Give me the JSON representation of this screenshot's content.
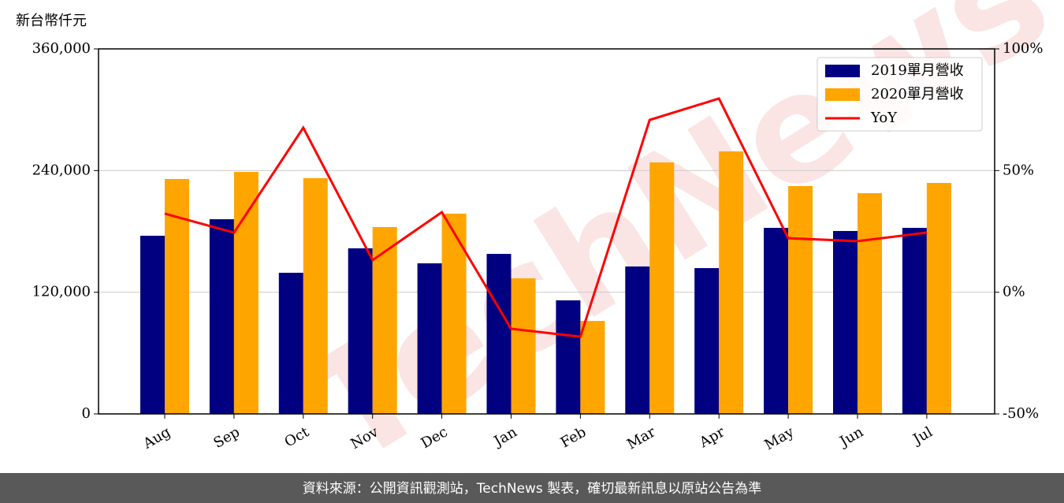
{
  "chart_data": {
    "type": "bar",
    "unit_label": "新台幣仟元",
    "watermark": "TechNews",
    "footer": "資料來源：公開資訊觀測站，TechNews 製表，確切最新訊息以原站公告為準",
    "categories": [
      "Aug",
      "Sep",
      "Oct",
      "Nov",
      "Dec",
      "Jan",
      "Feb",
      "Mar",
      "Apr",
      "May",
      "Jun",
      "Jul"
    ],
    "series": [
      {
        "name": "2019單月營收",
        "color": "#000080",
        "values": [
          175700,
          192000,
          139200,
          163300,
          148500,
          157800,
          112000,
          145400,
          143800,
          183500,
          180400,
          183500
        ]
      },
      {
        "name": "2020單月營收",
        "color": "#ffa500",
        "values": [
          231700,
          238700,
          232500,
          184300,
          197500,
          133700,
          91700,
          248000,
          258900,
          224700,
          217700,
          227800
        ]
      },
      {
        "name": "YoY",
        "color": "#ff0000",
        "type": "line",
        "axis": "y2",
        "values": [
          32.3,
          24.5,
          67.6,
          13.2,
          32.9,
          -15,
          -18.3,
          70.8,
          79.6,
          22.2,
          21,
          24.5
        ]
      }
    ],
    "ylim": [
      0,
      360000
    ],
    "yticks": [
      0,
      {
        "value": 120000,
        "label": "120,000"
      },
      {
        "value": 240000,
        "label": "240,000"
      },
      {
        "value": 360000,
        "label": "360,000"
      }
    ],
    "y2lim": [
      -50,
      100
    ],
    "y2ticks": [
      {
        "value": -50,
        "label": "-50%"
      },
      {
        "value": 0,
        "label": "0%"
      },
      {
        "value": 50,
        "label": "50%"
      },
      {
        "value": 100,
        "label": "100%"
      }
    ],
    "grid": true,
    "legend": "upper right"
  }
}
